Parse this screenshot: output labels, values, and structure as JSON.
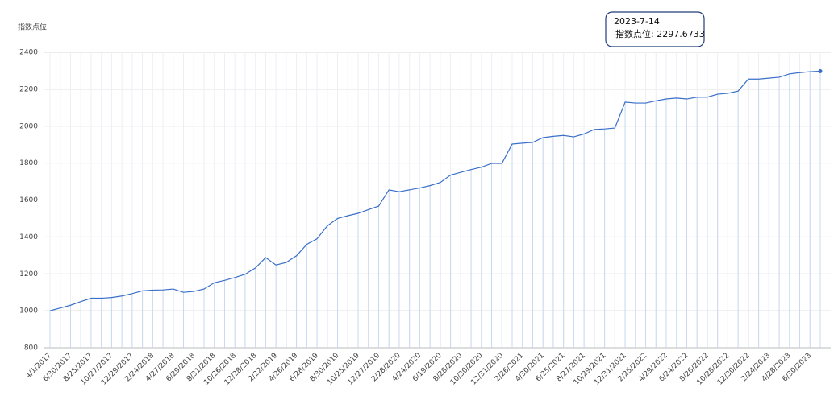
{
  "chart_data": {
    "type": "line",
    "y_label": "指数点位",
    "categories": [
      "4/1/2017",
      null,
      "6/30/2017",
      null,
      "8/25/2017",
      null,
      "10/27/2017",
      null,
      "12/29/2017",
      null,
      "2/24/2018",
      null,
      "4/27/2018",
      null,
      "6/29/2018",
      null,
      "8/31/2018",
      null,
      "10/26/2018",
      null,
      "12/28/2018",
      null,
      "2/22/2019",
      null,
      "4/26/2019",
      null,
      "6/28/2019",
      null,
      "8/30/2019",
      null,
      "10/25/2019",
      null,
      "12/27/2019",
      null,
      "2/28/2020",
      null,
      "4/24/2020",
      null,
      "6/19/2020",
      null,
      "8/28/2020",
      null,
      "10/30/2020",
      null,
      "12/31/2020",
      null,
      "2/26/2021",
      null,
      "4/30/2021",
      null,
      "6/25/2021",
      null,
      "8/27/2021",
      null,
      "10/29/2021",
      null,
      "12/31/2021",
      null,
      "2/25/2022",
      null,
      "4/29/2022",
      null,
      "6/24/2022",
      null,
      "8/26/2022",
      null,
      "10/28/2022",
      null,
      "12/30/2022",
      null,
      "2/24/2023",
      null,
      "4/28/2023",
      null,
      "6/30/2023",
      null
    ],
    "series": [
      {
        "name": "指数点位",
        "color": "#3a6fc9",
        "values": [
          1000,
          1015,
          1030,
          1050,
          1068,
          1068,
          1072,
          1080,
          1093,
          1108,
          1112,
          1113,
          1118,
          1100,
          1105,
          1118,
          1152,
          1165,
          1180,
          1198,
          1232,
          1288,
          1248,
          1262,
          1298,
          1360,
          1390,
          1460,
          1500,
          1515,
          1528,
          1548,
          1567,
          1655,
          1645,
          1655,
          1665,
          1678,
          1695,
          1735,
          1750,
          1765,
          1778,
          1798,
          1798,
          1903,
          1908,
          1912,
          1938,
          1945,
          1950,
          1942,
          1958,
          1982,
          1985,
          1990,
          2130,
          2125,
          2125,
          2137,
          2147,
          2152,
          2147,
          2157,
          2157,
          2173,
          2178,
          2190,
          2255,
          2255,
          2260,
          2265,
          2283,
          2290,
          2295,
          2297.6733
        ]
      }
    ],
    "ylim": [
      800,
      2400
    ],
    "yticks": [
      800,
      1000,
      1200,
      1400,
      1600,
      1800,
      2000,
      2200,
      2400
    ],
    "grid": true,
    "tooltip": {
      "title": "2023-7-14",
      "text": "指数点位: 2297.6733"
    }
  }
}
